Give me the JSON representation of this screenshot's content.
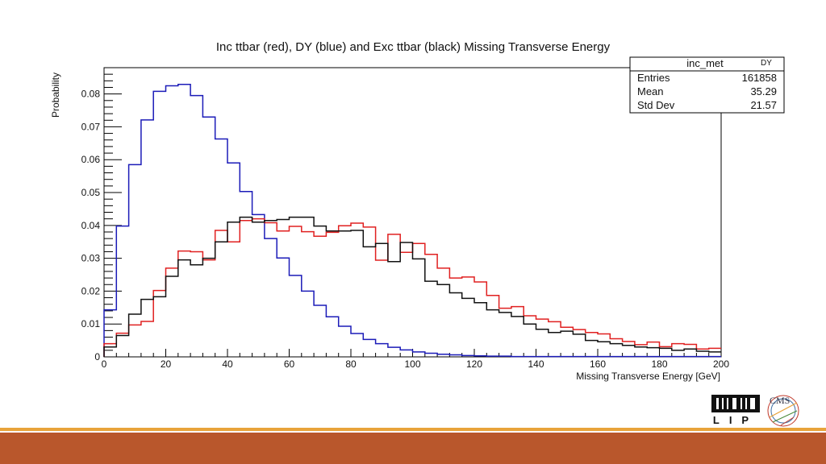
{
  "chart_data": {
    "type": "histogram",
    "title": "Inc ttbar (red), DY (blue) and Exc ttbar (black) Missing Transverse Energy",
    "xlabel": "Missing Transverse Energy [GeV]",
    "ylabel": "Probability",
    "xlim": [
      0,
      200
    ],
    "ylim": [
      0,
      0.088
    ],
    "bin_width": 4,
    "x_ticks": [
      0,
      20,
      40,
      60,
      80,
      100,
      120,
      140,
      160,
      180,
      200
    ],
    "y_ticks": [
      0,
      0.01,
      0.02,
      0.03,
      0.04,
      0.05,
      0.06,
      0.07,
      0.08
    ],
    "x_tick_labels": [
      "0",
      "20",
      "40",
      "60",
      "80",
      "100",
      "120",
      "140",
      "160",
      "180",
      "200"
    ],
    "y_tick_labels": [
      "0",
      "0.01",
      "0.02",
      "0.03",
      "0.04",
      "0.05",
      "0.06",
      "0.07",
      "0.08"
    ],
    "series": [
      {
        "color": "#1b1bb8",
        "values": [
          0.0143,
          0.0398,
          0.0585,
          0.0721,
          0.0808,
          0.0825,
          0.0829,
          0.0795,
          0.073,
          0.0663,
          0.059,
          0.0503,
          0.0433,
          0.036,
          0.0301,
          0.0248,
          0.02,
          0.0157,
          0.0122,
          0.0093,
          0.0071,
          0.0053,
          0.004,
          0.0029,
          0.0021,
          0.0015,
          0.0011,
          0.0008,
          0.0006,
          0.0004,
          0.0003,
          0.0002,
          0.0002,
          0.0001,
          0.0001,
          0.0001,
          0.0001,
          0.0001,
          0.0001,
          0.0001,
          0.0001,
          0.0001,
          0.0001,
          0.0001,
          0.0001,
          0.0001,
          0.0001,
          0.0001,
          0.0001,
          0.0001
        ]
      },
      {
        "color": "#e02020",
        "values": [
          0.004,
          0.0072,
          0.0097,
          0.0108,
          0.0202,
          0.027,
          0.0322,
          0.032,
          0.0295,
          0.0385,
          0.035,
          0.0415,
          0.042,
          0.0408,
          0.0383,
          0.0397,
          0.0381,
          0.0367,
          0.0379,
          0.0399,
          0.0407,
          0.0395,
          0.0294,
          0.0373,
          0.0318,
          0.0345,
          0.0312,
          0.027,
          0.024,
          0.0243,
          0.0228,
          0.0187,
          0.0148,
          0.0153,
          0.0125,
          0.0115,
          0.0107,
          0.009,
          0.0083,
          0.0074,
          0.007,
          0.0055,
          0.0047,
          0.0037,
          0.0045,
          0.0031,
          0.004,
          0.0038,
          0.0024,
          0.0026
        ]
      },
      {
        "color": "#111111",
        "values": [
          0.003,
          0.0065,
          0.013,
          0.0175,
          0.0183,
          0.0245,
          0.0295,
          0.028,
          0.03,
          0.035,
          0.041,
          0.0425,
          0.041,
          0.0415,
          0.0418,
          0.0425,
          0.0425,
          0.0398,
          0.0383,
          0.0383,
          0.0385,
          0.0335,
          0.0345,
          0.029,
          0.0348,
          0.0298,
          0.023,
          0.022,
          0.0195,
          0.0178,
          0.0165,
          0.0143,
          0.0135,
          0.0123,
          0.01,
          0.0084,
          0.0074,
          0.0078,
          0.0069,
          0.005,
          0.0046,
          0.004,
          0.0035,
          0.003,
          0.0028,
          0.0026,
          0.002,
          0.0024,
          0.0017,
          0.0015
        ]
      }
    ],
    "stats_box": {
      "title": "inc_met",
      "tag": "DY",
      "rows": [
        {
          "label": "Entries",
          "value": "161858"
        },
        {
          "label": "Mean",
          "value": "35.29"
        },
        {
          "label": "Std Dev",
          "value": "21.57"
        }
      ]
    },
    "grid": false,
    "legend": "top-right"
  },
  "logos": {
    "left": "LIP",
    "right": "CMS"
  },
  "colors": {
    "footer_bar": "#b9572c",
    "footer_line": "#e8a33a"
  }
}
